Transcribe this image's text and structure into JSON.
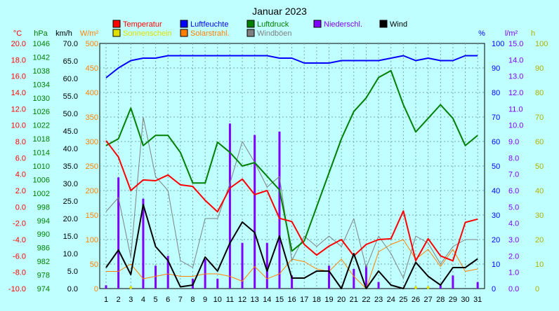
{
  "chart_data": {
    "type": "line",
    "title": "Januar 2023",
    "x": [
      1,
      2,
      3,
      4,
      5,
      6,
      7,
      8,
      9,
      10,
      11,
      12,
      13,
      14,
      15,
      16,
      17,
      18,
      19,
      20,
      21,
      22,
      23,
      24,
      25,
      26,
      27,
      28,
      29,
      30,
      31
    ],
    "legend": [
      {
        "label": "Temperatur",
        "color": "#ff0000"
      },
      {
        "label": "Luftfeuchte",
        "color": "#0000ff"
      },
      {
        "label": "Luftdruck",
        "color": "#008000"
      },
      {
        "label": "Niederschl.",
        "color": "#8000ff"
      },
      {
        "label": "Wind",
        "color": "#000000"
      },
      {
        "label": "Sonnenschein",
        "color": "#e0e000"
      },
      {
        "label": "Solarstrahl.",
        "color": "#ff8000"
      },
      {
        "label": "Windböen",
        "color": "#808080"
      }
    ],
    "axes": {
      "temp": {
        "unit": "°C",
        "color": "#ff0000",
        "min": -10,
        "max": 20,
        "ticks": [
          "20.0",
          "18.0",
          "16.0",
          "14.0",
          "12.0",
          "10.0",
          "8.0",
          "6.0",
          "4.0",
          "2.0",
          "0.0",
          "-2.0",
          "-4.0",
          "-6.0",
          "-8.0",
          "-10.0"
        ]
      },
      "pressure": {
        "unit": "hPa",
        "color": "#008000",
        "min": 974,
        "max": 1046,
        "ticks": [
          "1046",
          "1042",
          "1038",
          "1034",
          "1030",
          "1026",
          "1022",
          "1018",
          "1014",
          "1010",
          "1006",
          "1002",
          "998",
          "994",
          "990",
          "986",
          "982",
          "978",
          "974"
        ]
      },
      "wind": {
        "unit": "km/h",
        "color": "#000000",
        "min": 0,
        "max": 70,
        "ticks": [
          "70.0",
          "65.0",
          "60.0",
          "55.0",
          "50.0",
          "45.0",
          "40.0",
          "35.0",
          "30.0",
          "25.0",
          "20.0",
          "15.0",
          "10.0",
          "5.0",
          "0.0"
        ]
      },
      "solar": {
        "unit": "W/m²",
        "color": "#ff8000",
        "min": 0,
        "max": 500,
        "ticks": [
          "500",
          "450",
          "400",
          "350",
          "300",
          "250",
          "200",
          "150",
          "100",
          "50",
          "0"
        ]
      },
      "humidity": {
        "unit": "%",
        "color": "#0000ff",
        "min": 0,
        "max": 100,
        "ticks": [
          "100",
          "90",
          "80",
          "70",
          "60",
          "50",
          "40",
          "30",
          "20",
          "10",
          "0"
        ]
      },
      "rain": {
        "unit": "l/m²",
        "color": "#8000ff",
        "min": 0,
        "max": 15,
        "ticks": [
          "15.0",
          "14.0",
          "13.0",
          "12.0",
          "11.0",
          "10.0",
          "9.0",
          "8.0",
          "7.0",
          "6.0",
          "5.0",
          "4.0",
          "3.0",
          "2.0",
          "1.0",
          "0.0"
        ]
      },
      "sun": {
        "unit": "h",
        "color": "#b0b000",
        "min": 0,
        "max": 100,
        "ticks": [
          "100",
          "90",
          "80",
          "70",
          "60",
          "50",
          "40",
          "30",
          "20",
          "10",
          "0"
        ]
      }
    },
    "series": [
      {
        "name": "Temperatur",
        "axis": "temp",
        "color": "#ff0000",
        "values": [
          8.1,
          6.1,
          2.0,
          3.3,
          3.2,
          3.9,
          2.7,
          2.5,
          0.8,
          -0.6,
          2.3,
          3.4,
          1.5,
          2.0,
          -1.4,
          -1.8,
          -4.6,
          -5.9,
          -4.8,
          -4.0,
          -6.0,
          -4.6,
          -4.0,
          -3.9,
          -0.5,
          -6.6,
          -3.9,
          -6.0,
          -6.6,
          -1.9,
          -1.5
        ]
      },
      {
        "name": "Luftfeuchte",
        "axis": "humidity",
        "color": "#0000ff",
        "values": [
          86,
          90,
          93,
          94,
          94,
          95,
          95,
          95,
          95,
          95,
          95,
          95,
          95,
          95,
          94,
          94,
          92,
          92,
          92,
          93,
          93,
          93,
          93,
          94,
          95,
          93,
          94,
          93,
          93,
          95,
          95
        ]
      },
      {
        "name": "Luftdruck",
        "axis": "pressure",
        "color": "#008000",
        "values": [
          1016,
          1018,
          1027,
          1016,
          1019,
          1019,
          1014,
          1005,
          1005,
          1017,
          1014,
          1010,
          1011,
          1007,
          1003,
          985,
          988,
          998,
          1008,
          1018,
          1026,
          1030,
          1036,
          1038,
          1028,
          1020,
          1024,
          1028,
          1024,
          1016,
          1019
        ]
      },
      {
        "name": "Wind",
        "axis": "wind",
        "color": "#000000",
        "values": [
          6,
          11,
          4,
          24,
          12,
          8,
          0.5,
          1,
          9,
          5,
          13,
          19,
          16,
          5,
          15,
          3,
          3,
          5,
          5,
          0,
          10,
          0,
          5,
          1,
          0,
          7.5,
          3.5,
          1,
          6,
          6,
          8.5
        ]
      },
      {
        "name": "Windböen",
        "axis": "wind",
        "color": "#808080",
        "values": [
          22,
          26,
          9,
          49,
          32,
          28,
          8,
          6,
          20,
          20,
          30,
          42,
          36,
          29,
          32,
          8,
          15,
          12,
          15,
          12,
          20,
          6,
          15,
          10,
          3,
          15,
          13,
          7,
          12,
          14,
          14
        ]
      },
      {
        "name": "Solarstrahl.",
        "axis": "solar",
        "color": "#ff8000",
        "values": [
          35,
          35,
          50,
          20,
          25,
          30,
          25,
          25,
          30,
          30,
          25,
          15,
          45,
          20,
          30,
          60,
          55,
          40,
          35,
          60,
          25,
          0,
          75,
          90,
          100,
          60,
          80,
          45,
          80,
          35,
          40
        ]
      },
      {
        "name": "Sonnenschein",
        "axis": "sun",
        "color": "#e0e000",
        "values": [
          0,
          0,
          0.6,
          0,
          0,
          0,
          0,
          0,
          0,
          0,
          0,
          0,
          0,
          0,
          0,
          0,
          0,
          0,
          0,
          0,
          0,
          0,
          0,
          0,
          0,
          0.6,
          0.4,
          0,
          0,
          0,
          0
        ]
      },
      {
        "name": "Niederschl.",
        "axis": "rain",
        "color": "#8000ff",
        "type": "bar",
        "values": [
          0.2,
          6.8,
          0,
          5.5,
          1.4,
          2.0,
          0,
          0.6,
          1.8,
          0.6,
          10.1,
          2.8,
          9.4,
          2.8,
          9.6,
          0.8,
          0,
          0,
          1.4,
          0,
          1.2,
          1.4,
          0.4,
          0,
          0,
          0,
          0,
          0.2,
          0.8,
          0,
          0.4
        ]
      }
    ]
  }
}
